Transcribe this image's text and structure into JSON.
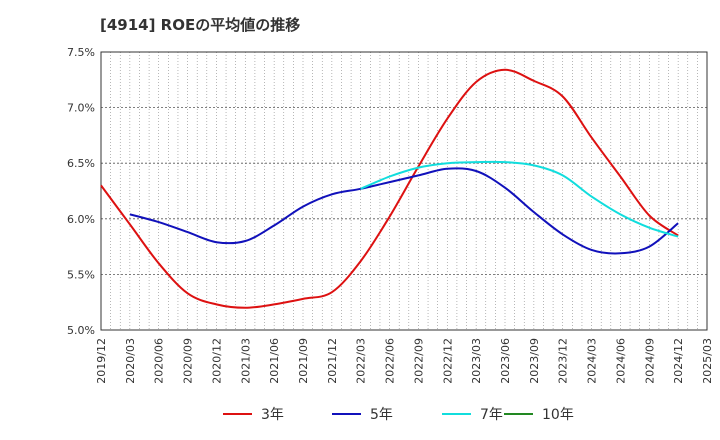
{
  "chart_data": {
    "type": "line",
    "title": "[4914]  ROEの平均値の推移",
    "xlabel": "",
    "ylabel": "",
    "ylim": [
      5.0,
      7.5
    ],
    "x_range": [
      "2019/12",
      "2025/03"
    ],
    "grid": true,
    "legend_position": "bottom-center",
    "x_tick_labels": [
      "2019/12",
      "2020/03",
      "2020/06",
      "2020/09",
      "2020/12",
      "2021/03",
      "2021/06",
      "2021/09",
      "2021/12",
      "2022/03",
      "2022/06",
      "2022/09",
      "2022/12",
      "2023/03",
      "2023/06",
      "2023/09",
      "2023/12",
      "2024/03",
      "2024/06",
      "2024/09",
      "2024/12",
      "2025/03"
    ],
    "y_tick_labels": [
      "5.0%",
      "5.5%",
      "6.0%",
      "6.5%",
      "7.0%",
      "7.5%"
    ],
    "y_ticks": [
      5.0,
      5.5,
      6.0,
      6.5,
      7.0,
      7.5
    ],
    "series": [
      {
        "name": "3年",
        "color": "#dd1111",
        "x": [
          "2019/12",
          "2020/03",
          "2020/06",
          "2020/09",
          "2020/12",
          "2021/03",
          "2021/06",
          "2021/09",
          "2021/12",
          "2022/03",
          "2022/06",
          "2022/09",
          "2022/12",
          "2023/03",
          "2023/06",
          "2023/09",
          "2023/12",
          "2024/03",
          "2024/06",
          "2024/09",
          "2024/12"
        ],
        "values": [
          6.3,
          5.95,
          5.6,
          5.33,
          5.23,
          5.2,
          5.23,
          5.28,
          5.34,
          5.62,
          6.02,
          6.47,
          6.9,
          7.23,
          7.34,
          7.24,
          7.1,
          6.73,
          6.38,
          6.03,
          5.85
        ]
      },
      {
        "name": "5年",
        "color": "#1111bb",
        "x": [
          "2020/03",
          "2020/06",
          "2020/09",
          "2020/12",
          "2021/03",
          "2021/06",
          "2021/09",
          "2021/12",
          "2022/03",
          "2022/06",
          "2022/09",
          "2022/12",
          "2023/03",
          "2023/06",
          "2023/09",
          "2023/12",
          "2024/03",
          "2024/06",
          "2024/09",
          "2024/12"
        ],
        "values": [
          6.04,
          5.97,
          5.88,
          5.79,
          5.8,
          5.94,
          6.11,
          6.22,
          6.27,
          6.33,
          6.39,
          6.45,
          6.43,
          6.28,
          6.06,
          5.86,
          5.72,
          5.69,
          5.75,
          5.96
        ]
      },
      {
        "name": "7年",
        "color": "#11dddd",
        "x": [
          "2022/03",
          "2022/06",
          "2022/09",
          "2022/12",
          "2023/03",
          "2023/06",
          "2023/09",
          "2023/12",
          "2024/03",
          "2024/06",
          "2024/09",
          "2024/12"
        ],
        "values": [
          6.27,
          6.38,
          6.46,
          6.5,
          6.51,
          6.51,
          6.48,
          6.39,
          6.2,
          6.04,
          5.92,
          5.84
        ]
      },
      {
        "name": "10年",
        "color": "#228822",
        "x": [],
        "values": []
      }
    ]
  }
}
